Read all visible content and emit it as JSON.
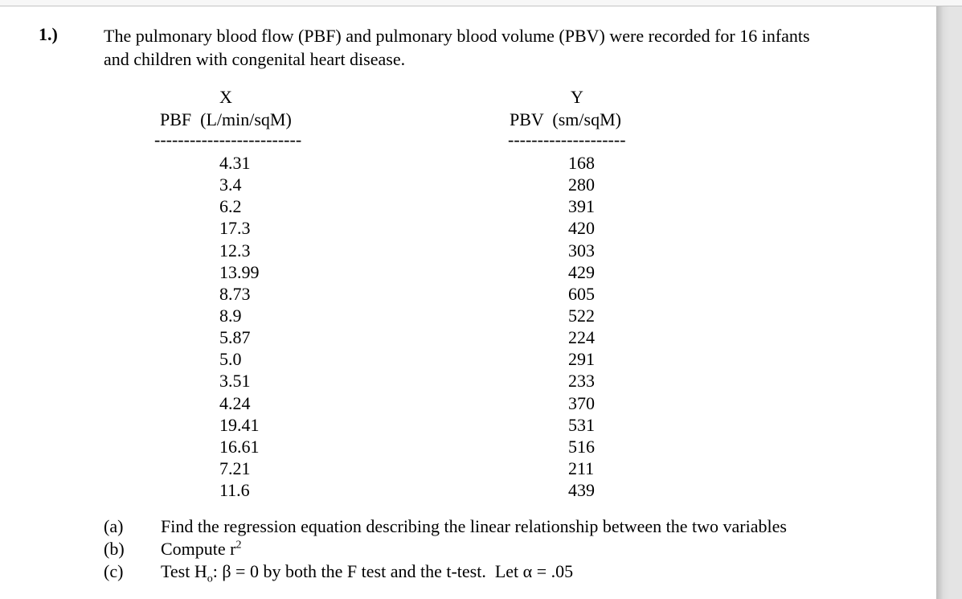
{
  "page": {
    "question_number": "1.)",
    "prompt": "The pulmonary blood flow (PBF) and pulmonary blood volume (PBV) were recorded for 16 infants\nand children with congenital heart disease."
  },
  "table": {
    "x_column": {
      "symbol": "X",
      "label": "PBF  (L/min/sqM)",
      "rule": "-------------------------",
      "values": [
        "4.31",
        "3.4",
        "6.2",
        "17.3",
        "12.3",
        "13.99",
        "8.73",
        "8.9",
        "5.87",
        "5.0",
        "3.51",
        "4.24",
        "19.41",
        "16.61",
        "7.21",
        "11.6"
      ]
    },
    "y_column": {
      "symbol": "Y",
      "label": "PBV  (sm/sqM)",
      "rule": "--------------------",
      "values": [
        "168",
        "280",
        "391",
        "420",
        "303",
        "429",
        "605",
        "522",
        "224",
        "291",
        "233",
        "370",
        "531",
        "516",
        "211",
        "439"
      ]
    }
  },
  "questions": {
    "a": {
      "label": "(a)",
      "text": "Find the regression equation describing the linear relationship between the two variables"
    },
    "b": {
      "label": "(b)",
      "prefix": "Compute r",
      "sup": "2"
    },
    "c": {
      "label": "(c)",
      "prefix": "Test H",
      "sub": "o",
      "rest": ": β = 0 by both the F test and the t-test.  Let α = .05"
    }
  }
}
